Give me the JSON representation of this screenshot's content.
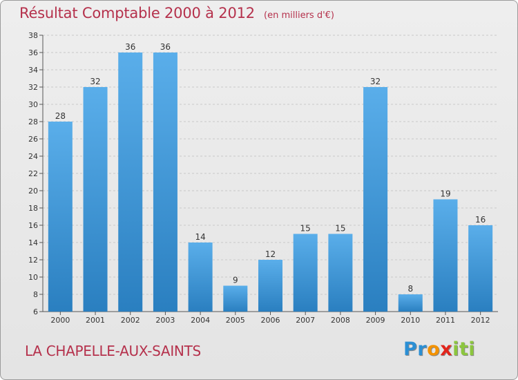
{
  "header": {
    "title": "Résultat Comptable 2000 à 2012",
    "unit": "(en milliers d'€)"
  },
  "footer": {
    "place": "LA CHAPELLE-AUX-SAINTS",
    "logo_letters": [
      {
        "ch": "P",
        "color": "#2b8fd4"
      },
      {
        "ch": "r",
        "color": "#2b8fd4"
      },
      {
        "ch": "o",
        "color": "#f39200"
      },
      {
        "ch": "x",
        "color": "#e2241b"
      },
      {
        "ch": "i",
        "color": "#8cc63e"
      },
      {
        "ch": "t",
        "color": "#8cc63e"
      },
      {
        "ch": "i",
        "color": "#8cc63e"
      }
    ]
  },
  "colors": {
    "bar_top": "#5aaeea",
    "bar_bottom": "#2a7fc0",
    "accent": "#b5314c"
  },
  "chart_data": {
    "type": "bar",
    "title": "Résultat Comptable 2000 à 2012",
    "subtitle": "(en milliers d'€)",
    "categories": [
      "2000",
      "2001",
      "2002",
      "2003",
      "2004",
      "2005",
      "2006",
      "2007",
      "2008",
      "2009",
      "2010",
      "2011",
      "2012"
    ],
    "values": [
      28,
      32,
      36,
      36,
      14,
      9,
      12,
      15,
      15,
      32,
      8,
      19,
      16
    ],
    "ylim": [
      6,
      38
    ],
    "yticks": [
      6,
      8,
      10,
      12,
      14,
      16,
      18,
      20,
      22,
      24,
      26,
      28,
      30,
      32,
      34,
      36,
      38
    ],
    "grid": true,
    "data_labels": true
  }
}
